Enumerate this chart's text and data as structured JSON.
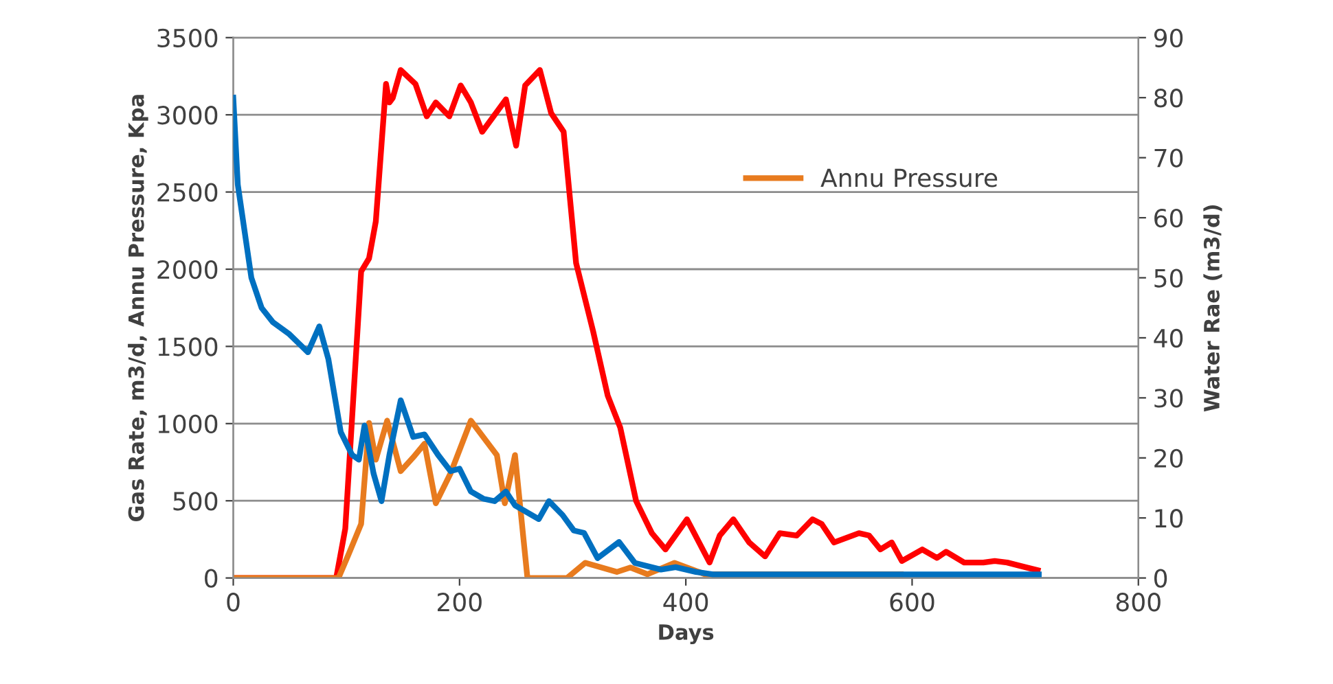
{
  "chart_data": {
    "type": "line",
    "xlabel": "Days",
    "ylabel": "Gas Rate, m3/d, Annu Pressure, Kpa",
    "y2label": "Water Rae (m3/d)",
    "xlim": [
      0,
      800
    ],
    "xticks": [
      0,
      200,
      400,
      600,
      800
    ],
    "ylim": [
      0,
      3500
    ],
    "yticks": [
      0,
      500,
      1000,
      1500,
      2000,
      2500,
      3000,
      3500
    ],
    "y2lim": [
      0,
      90
    ],
    "y2ticks": [
      0,
      10,
      20,
      30,
      40,
      50,
      60,
      70,
      80,
      90
    ],
    "grid": "y",
    "legend": "top right",
    "marker": "none",
    "line_style": "solid",
    "series": [
      {
        "color": "#ff0000",
        "x": [
          0,
          91,
          99,
          113,
          120,
          126,
          135,
          138,
          141,
          148,
          161,
          171,
          179,
          191,
          201,
          210,
          220,
          241,
          250,
          258,
          271,
          281,
          292,
          303,
          318,
          331,
          342,
          356,
          370,
          382,
          401,
          421,
          430,
          442,
          456,
          470,
          483,
          498,
          512,
          520,
          531,
          553,
          562,
          572,
          582,
          591,
          609,
          622,
          630,
          646,
          663,
          673,
          684,
          700,
          711
        ],
        "values": [
          0,
          0,
          320,
          1985,
          2070,
          2310,
          3200,
          3080,
          3110,
          3290,
          3200,
          2990,
          3080,
          2990,
          3190,
          3080,
          2890,
          3100,
          2800,
          3190,
          3290,
          3010,
          2890,
          2040,
          1600,
          1180,
          975,
          500,
          290,
          185,
          380,
          100,
          275,
          380,
          230,
          140,
          290,
          275,
          380,
          350,
          230,
          290,
          275,
          185,
          230,
          110,
          185,
          130,
          170,
          100,
          100,
          110,
          100,
          70,
          50
        ]
      },
      {
        "color": "#0070c0",
        "axis": "y2",
        "x": [
          0,
          4,
          16,
          25,
          35,
          49,
          66,
          76,
          84,
          95,
          105,
          111,
          116,
          124,
          131,
          138,
          148,
          159,
          169,
          181,
          192,
          200,
          210,
          221,
          231,
          241,
          249,
          260,
          270,
          279,
          291,
          301,
          310,
          322,
          341,
          355,
          378,
          391,
          409,
          424,
          712
        ],
        "values": [
          80,
          65.5,
          50,
          45,
          42.6,
          40.7,
          37.6,
          41.9,
          36.5,
          24.3,
          20.5,
          19.7,
          25.4,
          17.4,
          12.8,
          20.5,
          29.6,
          23.5,
          23.9,
          20.5,
          17.8,
          18.2,
          14.4,
          13.2,
          12.8,
          14.4,
          12.1,
          10.9,
          9.8,
          12.8,
          10.5,
          7.9,
          7.5,
          3.3,
          6.0,
          2.5,
          1.4,
          1.8,
          1.0,
          0.6,
          0.6
        ]
      },
      {
        "name": "Annu Pressure",
        "color": "#e87b1e",
        "x": [
          0,
          93,
          103,
          113,
          120,
          126,
          136,
          148,
          159,
          169,
          179,
          192,
          210,
          233,
          240,
          249,
          260,
          295,
          311,
          339,
          351,
          366,
          390,
          417,
          590
        ],
        "values": [
          0,
          0,
          172,
          350,
          1004,
          766,
          1019,
          692,
          781,
          870,
          484,
          677,
          1019,
          796,
          484,
          796,
          0,
          0,
          98,
          39,
          68,
          24,
          98,
          24,
          24
        ]
      }
    ]
  }
}
